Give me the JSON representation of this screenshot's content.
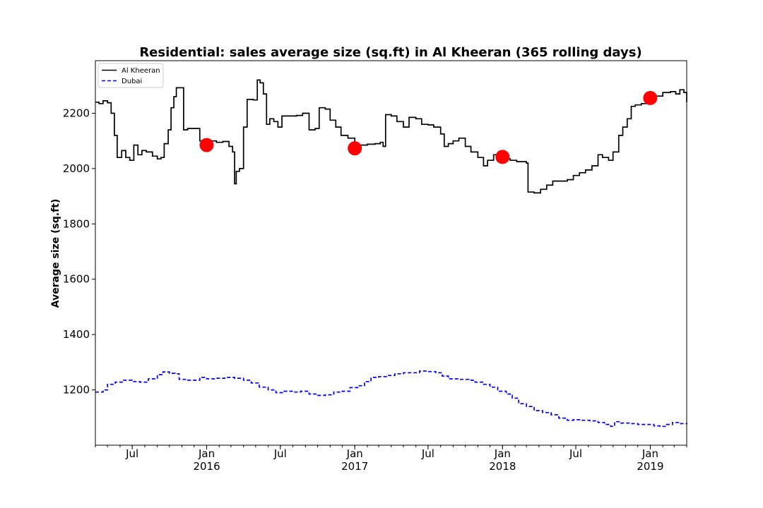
{
  "chart_data": {
    "type": "line",
    "title": "Residential: sales average size (sq.ft) in Al Kheeran (365 rolling days)",
    "xlabel": "",
    "ylabel": "Average size (sq.ft)",
    "xlim": [
      "2015-04-01",
      "2019-04-01"
    ],
    "ylim": [
      1000,
      2390
    ],
    "yticks": [
      1200,
      1400,
      1600,
      1800,
      2000,
      2200
    ],
    "xticks": [
      {
        "date": "2015-07-01",
        "label": "Jul",
        "sublabel": ""
      },
      {
        "date": "2016-01-01",
        "label": "Jan",
        "sublabel": "2016"
      },
      {
        "date": "2016-07-01",
        "label": "Jul",
        "sublabel": ""
      },
      {
        "date": "2017-01-01",
        "label": "Jan",
        "sublabel": "2017"
      },
      {
        "date": "2017-07-01",
        "label": "Jul",
        "sublabel": ""
      },
      {
        "date": "2018-01-01",
        "label": "Jan",
        "sublabel": "2018"
      },
      {
        "date": "2018-07-01",
        "label": "Jul",
        "sublabel": ""
      },
      {
        "date": "2019-01-01",
        "label": "Jan",
        "sublabel": "2019"
      }
    ],
    "grid": false,
    "legend_position": "top-left",
    "series": [
      {
        "name": "Al Kheeran",
        "color": "#000000",
        "style": "solid",
        "points": [
          [
            "2015-04-01",
            2240
          ],
          [
            "2015-04-10",
            2235
          ],
          [
            "2015-04-20",
            2245
          ],
          [
            "2015-05-01",
            2238
          ],
          [
            "2015-05-10",
            2200
          ],
          [
            "2015-05-18",
            2120
          ],
          [
            "2015-05-25",
            2040
          ],
          [
            "2015-06-05",
            2065
          ],
          [
            "2015-06-15",
            2040
          ],
          [
            "2015-06-25",
            2030
          ],
          [
            "2015-07-05",
            2085
          ],
          [
            "2015-07-15",
            2050
          ],
          [
            "2015-07-25",
            2065
          ],
          [
            "2015-08-05",
            2060
          ],
          [
            "2015-08-20",
            2045
          ],
          [
            "2015-09-01",
            2035
          ],
          [
            "2015-09-10",
            2040
          ],
          [
            "2015-09-18",
            2090
          ],
          [
            "2015-09-28",
            2140
          ],
          [
            "2015-10-05",
            2220
          ],
          [
            "2015-10-12",
            2260
          ],
          [
            "2015-10-18",
            2292
          ],
          [
            "2015-10-28",
            2292
          ],
          [
            "2015-11-05",
            2140
          ],
          [
            "2015-11-15",
            2145
          ],
          [
            "2015-11-28",
            2145
          ],
          [
            "2015-12-15",
            2100
          ],
          [
            "2016-01-01",
            2085
          ],
          [
            "2016-01-10",
            2100
          ],
          [
            "2016-01-25",
            2095
          ],
          [
            "2016-02-10",
            2098
          ],
          [
            "2016-02-25",
            2080
          ],
          [
            "2016-03-05",
            2060
          ],
          [
            "2016-03-10",
            1945
          ],
          [
            "2016-03-14",
            1990
          ],
          [
            "2016-03-22",
            2000
          ],
          [
            "2016-04-01",
            2150
          ],
          [
            "2016-04-10",
            2250
          ],
          [
            "2016-04-25",
            2248
          ],
          [
            "2016-05-05",
            2320
          ],
          [
            "2016-05-12",
            2310
          ],
          [
            "2016-05-20",
            2270
          ],
          [
            "2016-05-28",
            2160
          ],
          [
            "2016-06-05",
            2180
          ],
          [
            "2016-06-15",
            2170
          ],
          [
            "2016-06-25",
            2150
          ],
          [
            "2016-07-05",
            2190
          ],
          [
            "2016-07-20",
            2190
          ],
          [
            "2016-08-10",
            2192
          ],
          [
            "2016-08-25",
            2200
          ],
          [
            "2016-09-10",
            2140
          ],
          [
            "2016-09-25",
            2145
          ],
          [
            "2016-10-05",
            2220
          ],
          [
            "2016-10-20",
            2215
          ],
          [
            "2016-11-01",
            2175
          ],
          [
            "2016-11-15",
            2150
          ],
          [
            "2016-11-28",
            2120
          ],
          [
            "2016-12-15",
            2110
          ],
          [
            "2017-01-01",
            2075
          ],
          [
            "2017-01-15",
            2085
          ],
          [
            "2017-02-01",
            2088
          ],
          [
            "2017-02-20",
            2090
          ],
          [
            "2017-03-05",
            2095
          ],
          [
            "2017-03-12",
            2080
          ],
          [
            "2017-03-18",
            2195
          ],
          [
            "2017-04-01",
            2190
          ],
          [
            "2017-04-15",
            2170
          ],
          [
            "2017-05-01",
            2150
          ],
          [
            "2017-05-15",
            2185
          ],
          [
            "2017-06-01",
            2180
          ],
          [
            "2017-06-15",
            2160
          ],
          [
            "2017-07-01",
            2158
          ],
          [
            "2017-07-15",
            2150
          ],
          [
            "2017-08-01",
            2125
          ],
          [
            "2017-08-10",
            2080
          ],
          [
            "2017-08-20",
            2090
          ],
          [
            "2017-09-01",
            2100
          ],
          [
            "2017-09-15",
            2110
          ],
          [
            "2017-10-01",
            2080
          ],
          [
            "2017-10-15",
            2060
          ],
          [
            "2017-11-01",
            2040
          ],
          [
            "2017-11-15",
            2010
          ],
          [
            "2017-11-25",
            2030
          ],
          [
            "2017-12-10",
            2050
          ],
          [
            "2018-01-01",
            2035
          ],
          [
            "2018-01-20",
            2030
          ],
          [
            "2018-02-05",
            2025
          ],
          [
            "2018-02-20",
            2025
          ],
          [
            "2018-03-01",
            2020
          ],
          [
            "2018-03-05",
            1915
          ],
          [
            "2018-03-20",
            1912
          ],
          [
            "2018-04-05",
            1925
          ],
          [
            "2018-04-20",
            1940
          ],
          [
            "2018-05-05",
            1955
          ],
          [
            "2018-05-20",
            1955
          ],
          [
            "2018-06-10",
            1960
          ],
          [
            "2018-06-25",
            1975
          ],
          [
            "2018-07-10",
            1985
          ],
          [
            "2018-07-25",
            1995
          ],
          [
            "2018-08-10",
            2010
          ],
          [
            "2018-08-25",
            2050
          ],
          [
            "2018-09-05",
            2040
          ],
          [
            "2018-09-20",
            2030
          ],
          [
            "2018-10-01",
            2060
          ],
          [
            "2018-10-15",
            2120
          ],
          [
            "2018-10-25",
            2150
          ],
          [
            "2018-11-05",
            2180
          ],
          [
            "2018-11-15",
            2225
          ],
          [
            "2018-11-25",
            2230
          ],
          [
            "2018-12-10",
            2235
          ],
          [
            "2019-01-01",
            2250
          ],
          [
            "2019-01-15",
            2262
          ],
          [
            "2019-02-01",
            2275
          ],
          [
            "2019-02-20",
            2278
          ],
          [
            "2019-03-05",
            2270
          ],
          [
            "2019-03-15",
            2285
          ],
          [
            "2019-03-25",
            2275
          ],
          [
            "2019-04-01",
            2240
          ]
        ]
      },
      {
        "name": "Dubai",
        "color": "#0000ff",
        "style": "dashed",
        "points": [
          [
            "2015-04-01",
            1192
          ],
          [
            "2015-04-20",
            1200
          ],
          [
            "2015-05-01",
            1220
          ],
          [
            "2015-05-20",
            1228
          ],
          [
            "2015-06-10",
            1235
          ],
          [
            "2015-07-01",
            1230
          ],
          [
            "2015-07-20",
            1228
          ],
          [
            "2015-08-10",
            1240
          ],
          [
            "2015-09-01",
            1255
          ],
          [
            "2015-09-15",
            1265
          ],
          [
            "2015-10-01",
            1260
          ],
          [
            "2015-10-15",
            1258
          ],
          [
            "2015-10-25",
            1238
          ],
          [
            "2015-11-15",
            1235
          ],
          [
            "2015-12-15",
            1245
          ],
          [
            "2016-01-01",
            1240
          ],
          [
            "2016-01-20",
            1242
          ],
          [
            "2016-02-15",
            1245
          ],
          [
            "2016-03-10",
            1242
          ],
          [
            "2016-04-01",
            1235
          ],
          [
            "2016-04-20",
            1225
          ],
          [
            "2016-05-10",
            1210
          ],
          [
            "2016-06-01",
            1200
          ],
          [
            "2016-06-20",
            1190
          ],
          [
            "2016-07-10",
            1195
          ],
          [
            "2016-08-01",
            1192
          ],
          [
            "2016-08-20",
            1195
          ],
          [
            "2016-09-10",
            1185
          ],
          [
            "2016-10-01",
            1180
          ],
          [
            "2016-10-20",
            1182
          ],
          [
            "2016-11-10",
            1192
          ],
          [
            "2016-12-01",
            1195
          ],
          [
            "2016-12-20",
            1208
          ],
          [
            "2017-01-10",
            1215
          ],
          [
            "2017-01-25",
            1230
          ],
          [
            "2017-02-10",
            1245
          ],
          [
            "2017-03-01",
            1248
          ],
          [
            "2017-03-20",
            1252
          ],
          [
            "2017-04-10",
            1258
          ],
          [
            "2017-05-01",
            1262
          ],
          [
            "2017-05-20",
            1262
          ],
          [
            "2017-06-10",
            1268
          ],
          [
            "2017-07-01",
            1266
          ],
          [
            "2017-07-20",
            1262
          ],
          [
            "2017-08-05",
            1250
          ],
          [
            "2017-08-20",
            1240
          ],
          [
            "2017-09-15",
            1238
          ],
          [
            "2017-10-10",
            1235
          ],
          [
            "2017-10-25",
            1228
          ],
          [
            "2017-11-15",
            1220
          ],
          [
            "2017-12-01",
            1210
          ],
          [
            "2017-12-20",
            1195
          ],
          [
            "2018-01-10",
            1185
          ],
          [
            "2018-01-25",
            1170
          ],
          [
            "2018-02-10",
            1150
          ],
          [
            "2018-03-01",
            1140
          ],
          [
            "2018-03-20",
            1125
          ],
          [
            "2018-04-10",
            1118
          ],
          [
            "2018-05-01",
            1110
          ],
          [
            "2018-05-20",
            1098
          ],
          [
            "2018-06-10",
            1090
          ],
          [
            "2018-06-25",
            1092
          ],
          [
            "2018-07-15",
            1090
          ],
          [
            "2018-08-05",
            1088
          ],
          [
            "2018-08-25",
            1082
          ],
          [
            "2018-09-10",
            1075
          ],
          [
            "2018-09-25",
            1068
          ],
          [
            "2018-10-05",
            1085
          ],
          [
            "2018-10-20",
            1080
          ],
          [
            "2018-11-10",
            1078
          ],
          [
            "2018-12-01",
            1075
          ],
          [
            "2018-12-20",
            1075
          ],
          [
            "2019-01-10",
            1070
          ],
          [
            "2019-01-25",
            1068
          ],
          [
            "2019-02-10",
            1075
          ],
          [
            "2019-02-25",
            1082
          ],
          [
            "2019-03-15",
            1078
          ],
          [
            "2019-04-01",
            1080
          ]
        ]
      }
    ],
    "markers": {
      "color": "#ff0000",
      "points": [
        [
          "2016-01-01",
          2085
        ],
        [
          "2017-01-01",
          2073
        ],
        [
          "2018-01-01",
          2042
        ],
        [
          "2019-01-01",
          2255
        ]
      ]
    }
  }
}
